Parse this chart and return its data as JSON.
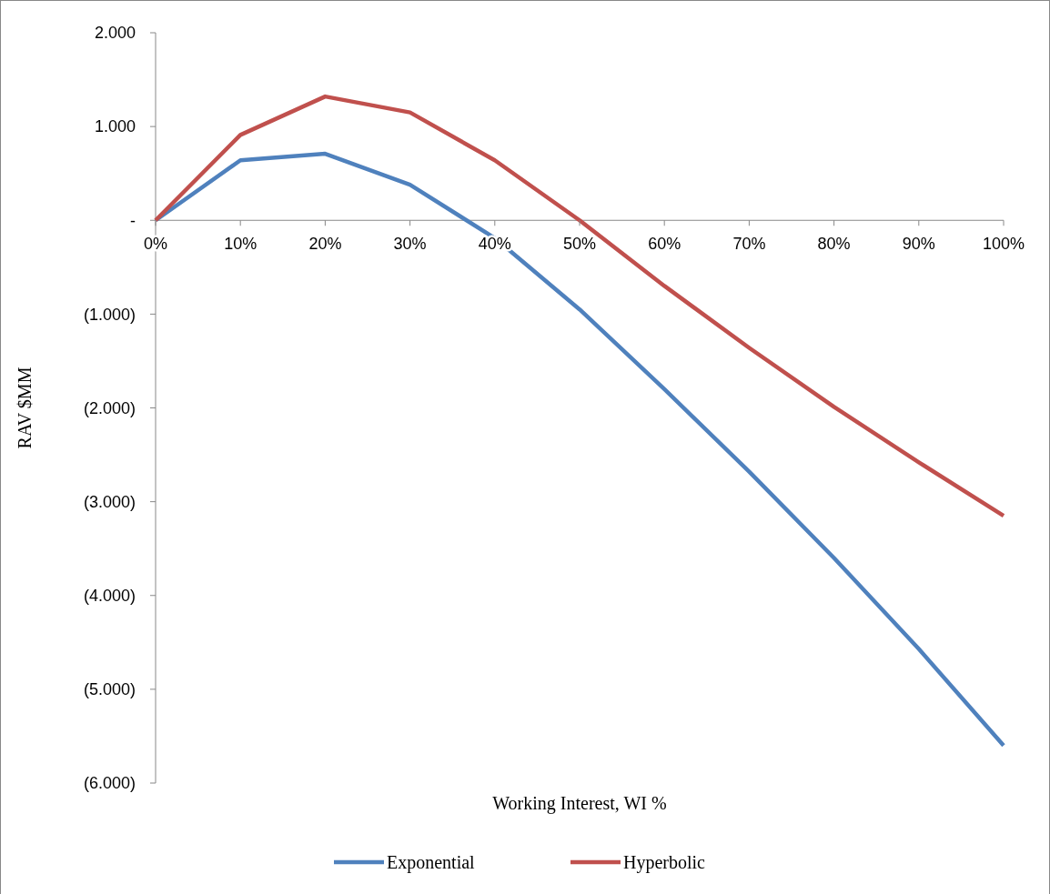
{
  "chart_data": {
    "type": "line",
    "xlabel": "Working Interest, WI %",
    "ylabel": "RAV $MM",
    "x": [
      0,
      10,
      20,
      30,
      40,
      50,
      60,
      70,
      80,
      90,
      100
    ],
    "series": [
      {
        "name": "Exponential",
        "color": "#4f81bd",
        "values": [
          0,
          640,
          710,
          380,
          -190,
          -950,
          -1800,
          -2680,
          -3600,
          -4570,
          -5600
        ]
      },
      {
        "name": "Hyperbolic",
        "color": "#c0504d",
        "values": [
          0,
          910,
          1320,
          1150,
          640,
          0,
          -700,
          -1360,
          -1990,
          -2580,
          -3150
        ]
      }
    ],
    "xlim": [
      0,
      100
    ],
    "xticks": [
      {
        "value": 0,
        "label": "0%"
      },
      {
        "value": 10,
        "label": "10%"
      },
      {
        "value": 20,
        "label": "20%"
      },
      {
        "value": 30,
        "label": "30%"
      },
      {
        "value": 40,
        "label": "40%"
      },
      {
        "value": 50,
        "label": "50%"
      },
      {
        "value": 60,
        "label": "60%"
      },
      {
        "value": 70,
        "label": "70%"
      },
      {
        "value": 80,
        "label": "80%"
      },
      {
        "value": 90,
        "label": "90%"
      },
      {
        "value": 100,
        "label": "100%"
      }
    ],
    "ylim": [
      -6000,
      2000
    ],
    "yticks": [
      {
        "value": -6000,
        "label": "(6.000)"
      },
      {
        "value": -5000,
        "label": "(5.000)"
      },
      {
        "value": -4000,
        "label": "(4.000)"
      },
      {
        "value": -3000,
        "label": "(3.000)"
      },
      {
        "value": -2000,
        "label": "(2.000)"
      },
      {
        "value": -1000,
        "label": "(1.000)"
      },
      {
        "value": 0,
        "label": "-"
      },
      {
        "value": 1000,
        "label": "1.000"
      },
      {
        "value": 2000,
        "label": "2.000"
      }
    ],
    "grid": false,
    "legend": "bottom",
    "marker": "none",
    "line_style": "solid"
  }
}
